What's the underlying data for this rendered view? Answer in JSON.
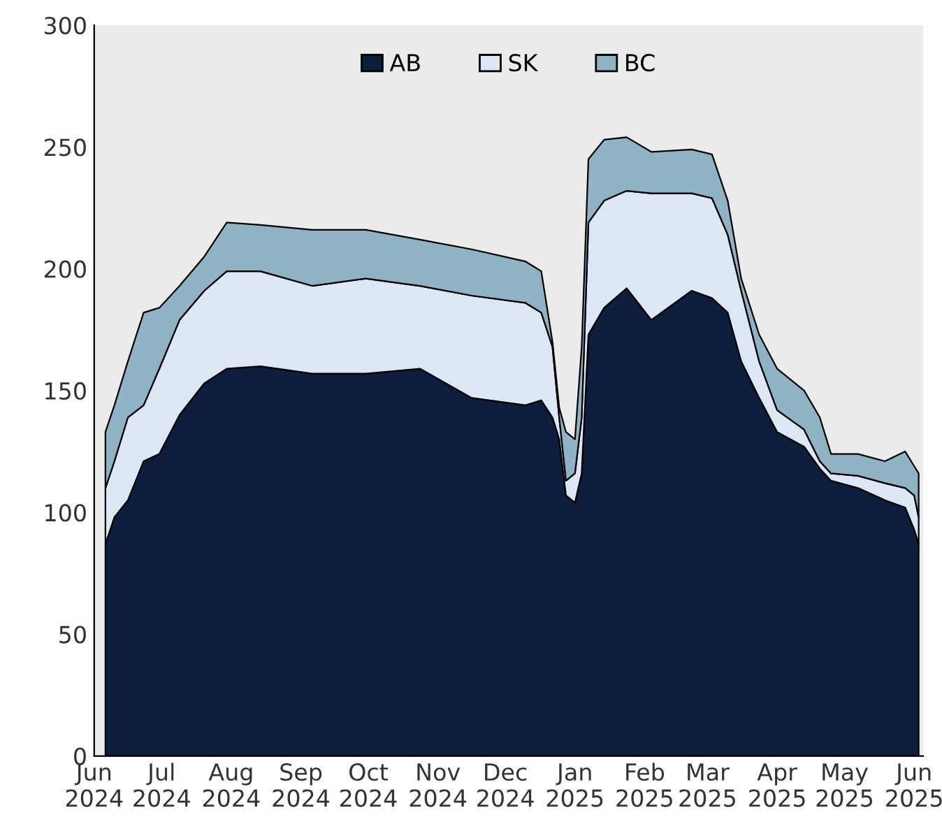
{
  "chart_data": {
    "type": "area",
    "stacked": true,
    "x": [
      "2024-06-06",
      "2024-06-10",
      "2024-06-16",
      "2024-06-23",
      "2024-06-30",
      "2024-07-09",
      "2024-07-20",
      "2024-07-30",
      "2024-08-14",
      "2024-09-06",
      "2024-09-30",
      "2024-10-24",
      "2024-11-16",
      "2024-12-10",
      "2024-12-17",
      "2024-12-22",
      "2024-12-25",
      "2024-12-28",
      "2025-01-01",
      "2025-01-04",
      "2025-01-07",
      "2025-01-14",
      "2025-01-24",
      "2025-02-04",
      "2025-02-22",
      "2025-03-03",
      "2025-03-10",
      "2025-03-16",
      "2025-03-24",
      "2025-04-01",
      "2025-04-13",
      "2025-04-20",
      "2025-04-25",
      "2025-05-07",
      "2025-05-19",
      "2025-05-28",
      "2025-06-01",
      "2025-06-03"
    ],
    "series": [
      {
        "name": "AB",
        "color": "#0d1f3c",
        "values": [
          87,
          98,
          105,
          121,
          124,
          140,
          153,
          159,
          160,
          157,
          157,
          159,
          147,
          144,
          146,
          139,
          130,
          107,
          104,
          116,
          173,
          184,
          192,
          179,
          191,
          188,
          182,
          162,
          147,
          133,
          127,
          118,
          113,
          110,
          105,
          102,
          93,
          87
        ]
      },
      {
        "name": "SK",
        "color": "#dde6f5",
        "values": [
          23,
          23,
          34,
          23,
          35,
          39,
          38,
          40,
          39,
          36,
          39,
          34,
          42,
          42,
          36,
          29,
          9,
          6,
          12,
          23,
          46,
          44,
          40,
          52,
          40,
          41,
          32,
          29,
          15,
          9,
          7,
          3,
          3,
          5,
          7,
          8,
          14,
          11
        ]
      },
      {
        "name": "BC",
        "color": "#8fb3c4",
        "values": [
          23,
          23,
          23,
          38,
          25,
          14,
          14,
          20,
          19,
          23,
          20,
          19,
          19,
          17,
          17,
          2,
          4,
          20,
          14,
          29,
          26,
          25,
          22,
          17,
          18,
          18,
          14,
          5,
          11,
          17,
          16,
          18,
          8,
          9,
          9,
          15,
          12,
          18
        ]
      }
    ],
    "xlim": [
      "2024-06-01",
      "2025-06-05"
    ],
    "xticks": [
      {
        "value": "2024-06-01",
        "label": "Jun\n2024"
      },
      {
        "value": "2024-07-01",
        "label": "Jul\n2024"
      },
      {
        "value": "2024-08-01",
        "label": "Aug\n2024"
      },
      {
        "value": "2024-09-01",
        "label": "Sep\n2024"
      },
      {
        "value": "2024-10-01",
        "label": "Oct\n2024"
      },
      {
        "value": "2024-11-01",
        "label": "Nov\n2024"
      },
      {
        "value": "2024-12-01",
        "label": "Dec\n2024"
      },
      {
        "value": "2025-01-01",
        "label": "Jan\n2025"
      },
      {
        "value": "2025-02-01",
        "label": "Feb\n2025"
      },
      {
        "value": "2025-03-01",
        "label": "Mar\n2025"
      },
      {
        "value": "2025-04-01",
        "label": "Apr\n2025"
      },
      {
        "value": "2025-05-01",
        "label": "May\n2025"
      },
      {
        "value": "2025-06-01",
        "label": "Jun\n2025"
      }
    ],
    "ylim": [
      0,
      300
    ],
    "yticks": [
      0,
      50,
      100,
      150,
      200,
      250,
      300
    ],
    "grid": false,
    "legend": "top"
  }
}
